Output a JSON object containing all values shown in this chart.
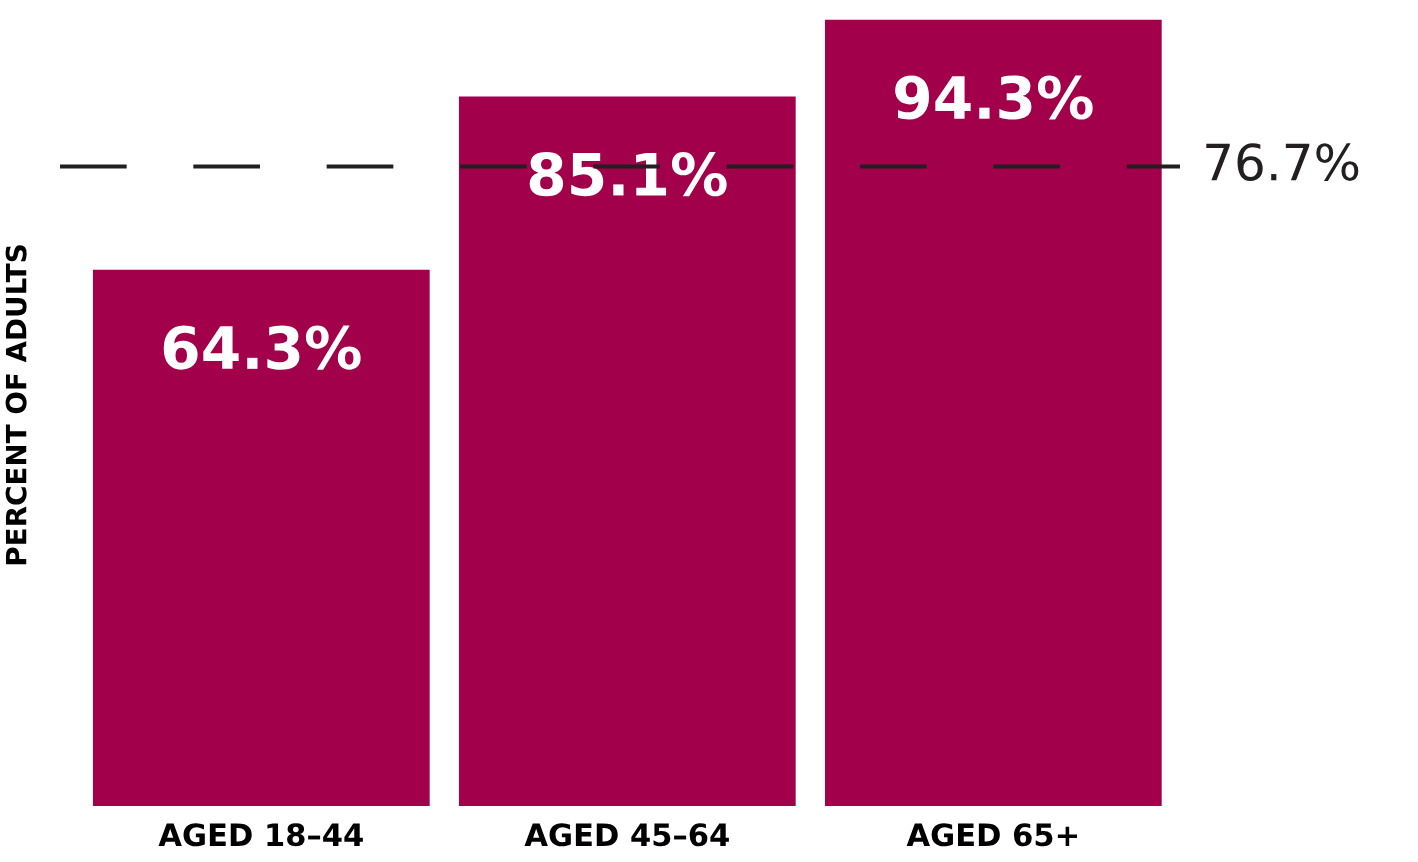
{
  "chart_data": {
    "type": "bar",
    "ylabel": "PERCENT OF ADULTS",
    "categories": [
      "AGED 18–44",
      "AGED 45–64",
      "AGED 65+"
    ],
    "values": [
      64.3,
      85.1,
      94.3
    ],
    "color": "#a3004b",
    "value_labels": [
      "64.3%",
      "85.1%",
      "94.3%"
    ],
    "ref_lines": [
      {
        "axis": "y",
        "value": 76.7,
        "label": "76.7%",
        "color": "#231f20",
        "line_style": "dashed"
      }
    ],
    "tick_labels": "x",
    "grid": false,
    "legend": false
  }
}
